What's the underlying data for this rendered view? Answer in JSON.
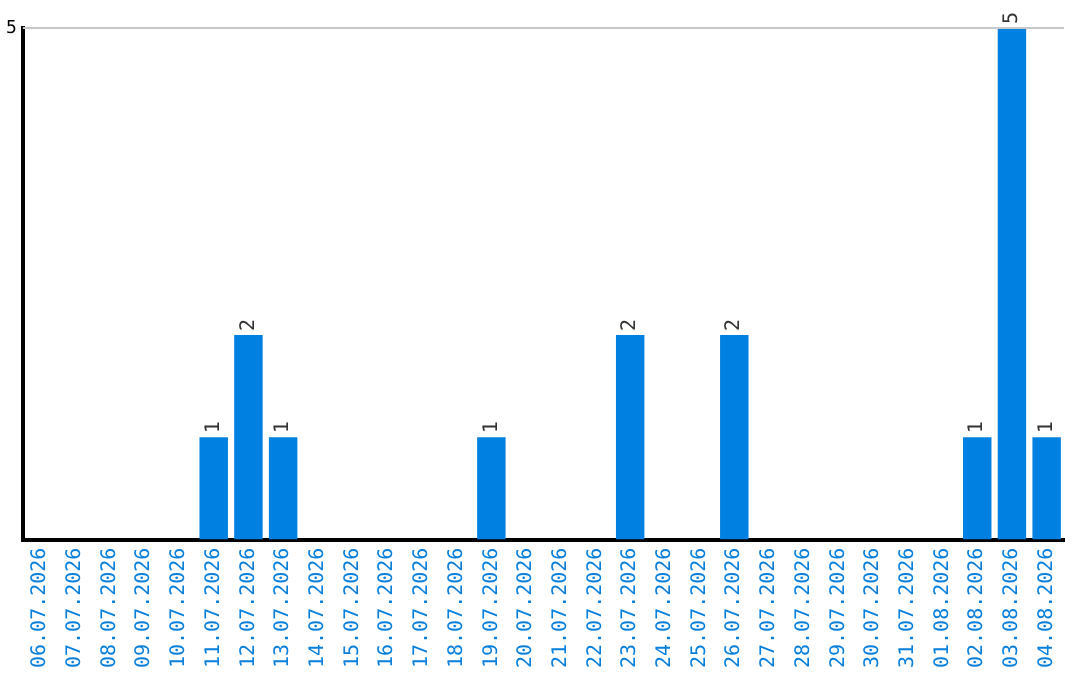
{
  "chart_data": {
    "type": "bar",
    "categories": [
      "06.07.2026",
      "07.07.2026",
      "08.07.2026",
      "09.07.2026",
      "10.07.2026",
      "11.07.2026",
      "12.07.2026",
      "13.07.2026",
      "14.07.2026",
      "15.07.2026",
      "16.07.2026",
      "17.07.2026",
      "18.07.2026",
      "19.07.2026",
      "20.07.2026",
      "21.07.2026",
      "22.07.2026",
      "23.07.2026",
      "24.07.2026",
      "25.07.2026",
      "26.07.2026",
      "27.07.2026",
      "28.07.2026",
      "29.07.2026",
      "30.07.2026",
      "31.07.2026",
      "01.08.2026",
      "02.08.2026",
      "03.08.2026",
      "04.08.2026"
    ],
    "values": [
      0,
      0,
      0,
      0,
      0,
      1,
      2,
      1,
      0,
      0,
      0,
      0,
      0,
      1,
      0,
      0,
      0,
      2,
      0,
      0,
      2,
      0,
      0,
      0,
      0,
      0,
      0,
      1,
      5,
      1
    ],
    "color": "#0080e0",
    "value_labels": [
      null,
      null,
      null,
      null,
      null,
      "1",
      "2",
      "1",
      null,
      null,
      null,
      null,
      null,
      "1",
      null,
      null,
      null,
      "2",
      null,
      null,
      "2",
      null,
      null,
      null,
      null,
      null,
      null,
      "1",
      "5",
      "1"
    ],
    "ylim": [
      0,
      5
    ],
    "yticks": [
      5
    ],
    "ref_lines": [
      {
        "axis": "y",
        "value": 5,
        "color": "#c8c8c8"
      }
    ],
    "legend": false
  }
}
